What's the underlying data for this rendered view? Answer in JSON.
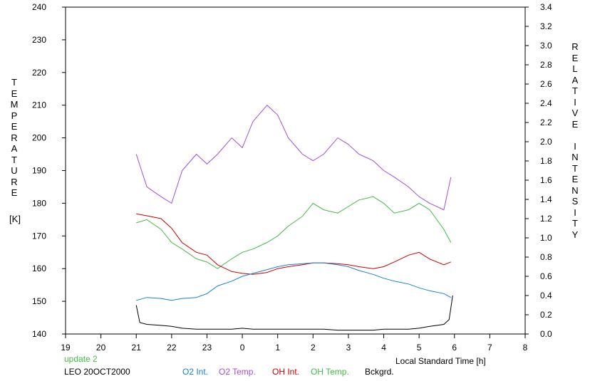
{
  "chart_data": {
    "type": "line",
    "left_axis_label": "TEMPERATURE",
    "left_axis_unit": "[K]",
    "right_axis_label": "RELATIVE INTENSITY",
    "xlabel": "Local Standard Time [h]",
    "x_ticks": [
      "19",
      "20",
      "21",
      "22",
      "23",
      "0",
      "1",
      "2",
      "3",
      "4",
      "5",
      "6",
      "7",
      "8"
    ],
    "xlim": [
      19,
      32
    ],
    "ylim_left": [
      140,
      240
    ],
    "yticks_left": [
      140,
      150,
      160,
      170,
      180,
      190,
      200,
      210,
      220,
      230,
      240
    ],
    "ylim_right": [
      0.0,
      3.4
    ],
    "yticks_right": [
      "0.0",
      "0.2",
      "0.4",
      "0.6",
      "0.8",
      "1.0",
      "1.2",
      "1.4",
      "1.6",
      "1.8",
      "2.0",
      "2.2",
      "2.4",
      "2.6",
      "2.8",
      "3.0",
      "3.2",
      "3.4"
    ],
    "grid": false,
    "status_text": "update 2",
    "site_date": "LEO 20OCT2000",
    "legend": [
      {
        "name": "O2 Int.",
        "color": "#1a7fd6"
      },
      {
        "name": "O2 Temp.",
        "color": "#a050d8"
      },
      {
        "name": "OH Int.",
        "color": "#cc0000"
      },
      {
        "name": "OH Temp.",
        "color": "#44bb44"
      },
      {
        "name": "Bckgrd.",
        "color": "#000000"
      }
    ],
    "series": [
      {
        "name": "O2 Temp.",
        "axis": "left",
        "color": "#a050d8",
        "x": [
          21.0,
          21.3,
          21.7,
          22.0,
          22.3,
          22.7,
          23.0,
          23.3,
          23.7,
          24.0,
          24.3,
          24.7,
          25.0,
          25.3,
          25.7,
          26.0,
          26.3,
          26.7,
          27.0,
          27.3,
          27.7,
          28.0,
          28.3,
          28.7,
          29.0,
          29.3,
          29.7,
          29.9
        ],
        "y": [
          195,
          185,
          182,
          180,
          190,
          195,
          192,
          195,
          200,
          197,
          205,
          210,
          207,
          200,
          195,
          193,
          195,
          200,
          198,
          195,
          193,
          190,
          188,
          185,
          182,
          180,
          178,
          188
        ]
      },
      {
        "name": "OH Temp.",
        "axis": "left",
        "color": "#44bb44",
        "x": [
          21.0,
          21.3,
          21.7,
          22.0,
          22.3,
          22.7,
          23.0,
          23.3,
          23.7,
          24.0,
          24.3,
          24.7,
          25.0,
          25.3,
          25.7,
          26.0,
          26.3,
          26.7,
          27.0,
          27.3,
          27.7,
          28.0,
          28.3,
          28.7,
          29.0,
          29.3,
          29.7,
          29.9
        ],
        "y": [
          174,
          175,
          172,
          168,
          166,
          163,
          162,
          160,
          163,
          165,
          166,
          168,
          170,
          173,
          176,
          180,
          178,
          177,
          179,
          181,
          182,
          180,
          177,
          178,
          180,
          178,
          172,
          168
        ]
      },
      {
        "name": "OH Int.",
        "axis": "right",
        "color": "#cc0000",
        "x": [
          21.0,
          21.3,
          21.7,
          22.0,
          22.3,
          22.7,
          23.0,
          23.3,
          23.7,
          24.0,
          24.3,
          24.7,
          25.0,
          25.3,
          25.7,
          26.0,
          26.3,
          26.7,
          27.0,
          27.3,
          27.7,
          28.0,
          28.3,
          28.7,
          29.0,
          29.3,
          29.7,
          29.9
        ],
        "y": [
          1.25,
          1.23,
          1.2,
          1.1,
          0.95,
          0.85,
          0.82,
          0.72,
          0.65,
          0.63,
          0.62,
          0.64,
          0.68,
          0.7,
          0.72,
          0.74,
          0.74,
          0.73,
          0.72,
          0.7,
          0.68,
          0.7,
          0.75,
          0.82,
          0.85,
          0.78,
          0.72,
          0.75
        ]
      },
      {
        "name": "O2 Int.",
        "axis": "right",
        "color": "#1a7fd6",
        "x": [
          21.0,
          21.3,
          21.7,
          22.0,
          22.3,
          22.7,
          23.0,
          23.3,
          23.7,
          24.0,
          24.3,
          24.7,
          25.0,
          25.3,
          25.7,
          26.0,
          26.3,
          26.7,
          27.0,
          27.3,
          27.7,
          28.0,
          28.3,
          28.7,
          29.0,
          29.3,
          29.7,
          29.9
        ],
        "y": [
          0.35,
          0.38,
          0.37,
          0.35,
          0.37,
          0.38,
          0.42,
          0.5,
          0.55,
          0.6,
          0.63,
          0.67,
          0.7,
          0.72,
          0.73,
          0.74,
          0.74,
          0.72,
          0.7,
          0.66,
          0.62,
          0.58,
          0.55,
          0.52,
          0.48,
          0.45,
          0.42,
          0.38
        ]
      },
      {
        "name": "Bckgrd.",
        "axis": "right",
        "color": "#000000",
        "x": [
          21.0,
          21.1,
          21.3,
          21.7,
          22.0,
          22.3,
          22.7,
          23.0,
          23.3,
          23.7,
          24.0,
          24.3,
          24.7,
          25.0,
          25.3,
          25.7,
          26.0,
          26.3,
          26.7,
          27.0,
          27.3,
          27.7,
          28.0,
          28.3,
          28.7,
          29.0,
          29.3,
          29.7,
          29.85,
          29.95
        ],
        "y": [
          0.3,
          0.12,
          0.1,
          0.09,
          0.08,
          0.06,
          0.05,
          0.05,
          0.05,
          0.05,
          0.06,
          0.05,
          0.05,
          0.05,
          0.05,
          0.05,
          0.05,
          0.05,
          0.04,
          0.04,
          0.04,
          0.04,
          0.05,
          0.05,
          0.05,
          0.06,
          0.08,
          0.1,
          0.15,
          0.4
        ]
      }
    ]
  }
}
